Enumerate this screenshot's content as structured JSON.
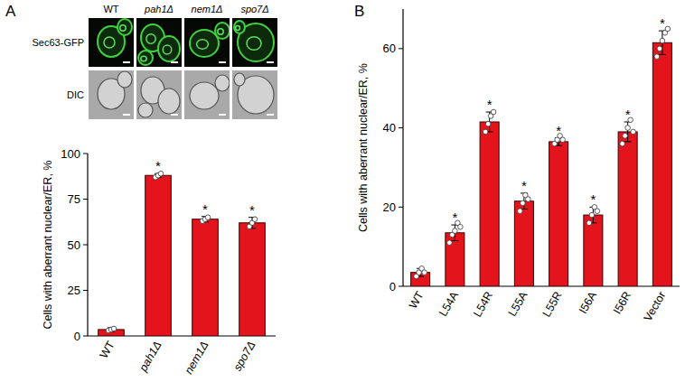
{
  "figure": {
    "panel_labels": [
      "A",
      "B"
    ],
    "image_rows": [
      "Sec63-GFP",
      "DIC"
    ],
    "image_columns": [
      "WT",
      "pah1Δ",
      "nem1Δ",
      "spo7Δ"
    ]
  },
  "chart_data": [
    {
      "type": "bar",
      "y_label": "Cells with aberrant nuclear/ER, %",
      "categories": [
        "WT",
        "pah1Δ",
        "nem1Δ",
        "spo7Δ"
      ],
      "values": [
        3.5,
        88,
        64,
        62
      ],
      "errors": [
        1,
        1,
        1.5,
        3
      ],
      "points": [
        [
          3,
          3.5,
          4
        ],
        [
          87,
          88,
          89
        ],
        [
          63,
          64,
          65
        ],
        [
          60,
          62,
          64
        ]
      ],
      "annotations": [
        null,
        "*",
        "*",
        "*"
      ],
      "color": "#e3141c",
      "ylim": [
        0,
        100
      ],
      "yticks": [
        0,
        25,
        50,
        75,
        100
      ],
      "grid": false
    },
    {
      "type": "bar",
      "y_label": "Cells with aberrant nuclear/ER, %",
      "categories": [
        "WT",
        "L54A",
        "L54R",
        "L55A",
        "L55R",
        "I56A",
        "I56R",
        "Vector"
      ],
      "values": [
        3.5,
        13.5,
        41.5,
        21.5,
        36.5,
        18,
        39,
        61.5
      ],
      "errors": [
        1,
        2,
        2.5,
        2,
        1,
        2,
        2.5,
        3
      ],
      "points": [
        [
          2.5,
          3.5,
          4.5,
          3.5
        ],
        [
          11,
          13,
          14,
          16,
          15
        ],
        [
          39,
          41,
          43,
          44
        ],
        [
          19,
          21,
          23,
          22
        ],
        [
          36,
          37,
          38,
          37
        ],
        [
          16,
          18,
          20,
          19
        ],
        [
          36,
          38,
          40,
          42,
          39
        ],
        [
          58,
          60,
          62,
          64,
          65
        ]
      ],
      "annotations": [
        null,
        "*",
        "*",
        "*",
        "*",
        "*",
        "*",
        "*"
      ],
      "color": "#e3141c",
      "ylim": [
        0,
        70
      ],
      "yticks": [
        0,
        20,
        40,
        60
      ],
      "grid": false
    }
  ]
}
